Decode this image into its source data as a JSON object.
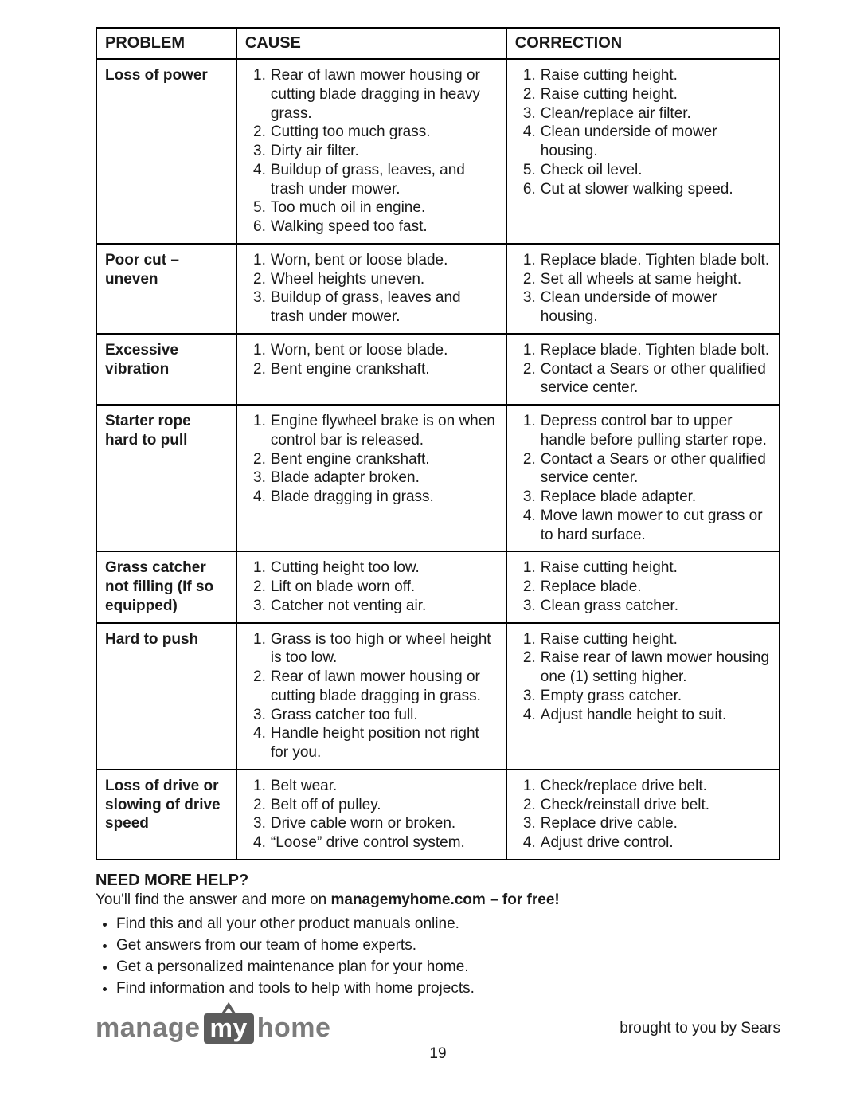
{
  "headers": {
    "problem": "PROBLEM",
    "cause": "CAUSE",
    "correction": "CORRECTION"
  },
  "col_widths_pct": [
    20.5,
    39.5,
    40
  ],
  "rows": [
    {
      "problem": "Loss of power",
      "causes": [
        "Rear of lawn mower housing or cutting blade dragging in heavy grass.",
        "Cutting too much grass.",
        "Dirty air filter.",
        "Buildup of grass, leaves, and trash under mower.",
        "Too much oil in engine.",
        "Walking speed too fast."
      ],
      "corrections": [
        "Raise cutting height.",
        "Raise cutting height.",
        "Clean/replace air filter.",
        "Clean underside of mower housing.",
        "Check oil level.",
        "Cut at slower walking speed."
      ]
    },
    {
      "problem": "Poor cut – uneven",
      "causes": [
        "Worn, bent or loose blade.",
        "Wheel heights uneven.",
        "Buildup of grass, leaves and trash under mower."
      ],
      "corrections": [
        "Replace blade. Tighten blade bolt.",
        "Set all wheels at same height.",
        "Clean underside of mower housing."
      ]
    },
    {
      "problem": "Excessive vibration",
      "causes": [
        "Worn, bent or loose blade.",
        "Bent engine crankshaft."
      ],
      "corrections": [
        "Replace blade. Tighten blade bolt.",
        "Contact a Sears or other qualified service center."
      ]
    },
    {
      "problem": "Starter rope hard to pull",
      "causes": [
        "Engine flywheel brake is on when control bar is released.",
        "Bent engine crankshaft.",
        "Blade adapter broken.",
        "Blade dragging in grass."
      ],
      "corrections": [
        "Depress control bar to upper handle before pulling starter rope.",
        "Contact a Sears or other qualified service center.",
        "Replace blade adapter.",
        "Move lawn mower to cut grass or to hard surface."
      ]
    },
    {
      "problem": "Grass catcher not filling (If so equipped)",
      "causes": [
        "Cutting height too low.",
        "Lift on blade worn off.",
        "Catcher not venting air."
      ],
      "corrections": [
        "Raise cutting height.",
        "Replace blade.",
        "Clean grass catcher."
      ]
    },
    {
      "problem": "Hard to push",
      "causes": [
        "Grass is too high or wheel height is too low.",
        "Rear of lawn mower housing or cutting blade dragging in grass.",
        "Grass catcher too full.",
        "Handle height position not right for you."
      ],
      "corrections": [
        "Raise cutting height.",
        "Raise rear of lawn mower housing one (1) setting higher.",
        "Empty grass catcher.",
        "Adjust handle height to suit."
      ]
    },
    {
      "problem": "Loss of drive or slowing of drive speed",
      "causes": [
        "Belt wear.",
        "Belt off of pulley.",
        "Drive cable worn or broken.",
        "“Loose” drive control system."
      ],
      "corrections": [
        "Check/replace drive belt.",
        "Check/reinstall drive belt.",
        "Replace drive cable.",
        "Adjust drive control."
      ]
    }
  ],
  "help": {
    "heading": "NEED MORE HELP?",
    "intro_pre": "You'll find the answer and more on ",
    "intro_bold": "managemyhome.com – for free!",
    "bullets": [
      "Find this and all your other product manuals online.",
      "Get answers from our team of home experts.",
      "Get a personalized maintenance plan for your home.",
      "Find information and tools to help with home projects."
    ]
  },
  "logo": {
    "pre": "manage",
    "pill": "my",
    "post": "home"
  },
  "brought": "brought to you by Sears",
  "page_number": "19",
  "colors": {
    "text": "#1a1a1a",
    "border": "#000000",
    "logo_gray": "#7c7c7c",
    "pill_bg": "#5c5c5c",
    "pill_fg": "#ffffff",
    "background": "#ffffff"
  },
  "font_sizes_pt": {
    "body": 14,
    "header_cells": 15,
    "help_heading": 15,
    "logo": 26,
    "page_number": 14
  }
}
